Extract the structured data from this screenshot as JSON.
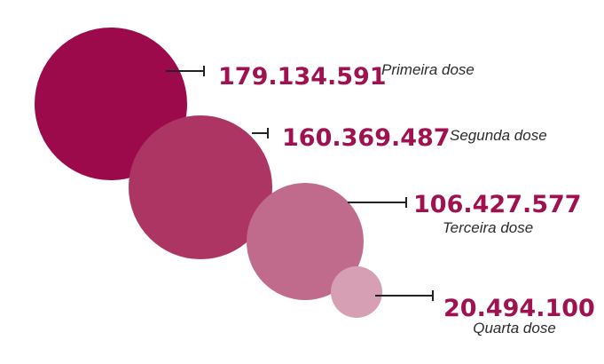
{
  "chart_data": {
    "type": "bubble",
    "title": "",
    "items": [
      {
        "label": "Primeira dose",
        "value": 179134591,
        "display": "179.134.591",
        "color": "#9c0a4b"
      },
      {
        "label": "Segunda dose",
        "value": 160369487,
        "display": "160.369.487",
        "color": "#ad3563"
      },
      {
        "label": "Terceira dose",
        "value": 106427577,
        "display": "106.427.577",
        "color": "#c06b8c"
      },
      {
        "label": "Quarta dose",
        "value": 20494100,
        "display": "20.494.100",
        "color": "#d69fb3"
      }
    ],
    "value_color": "#a0114f",
    "line_color": "#222222"
  }
}
